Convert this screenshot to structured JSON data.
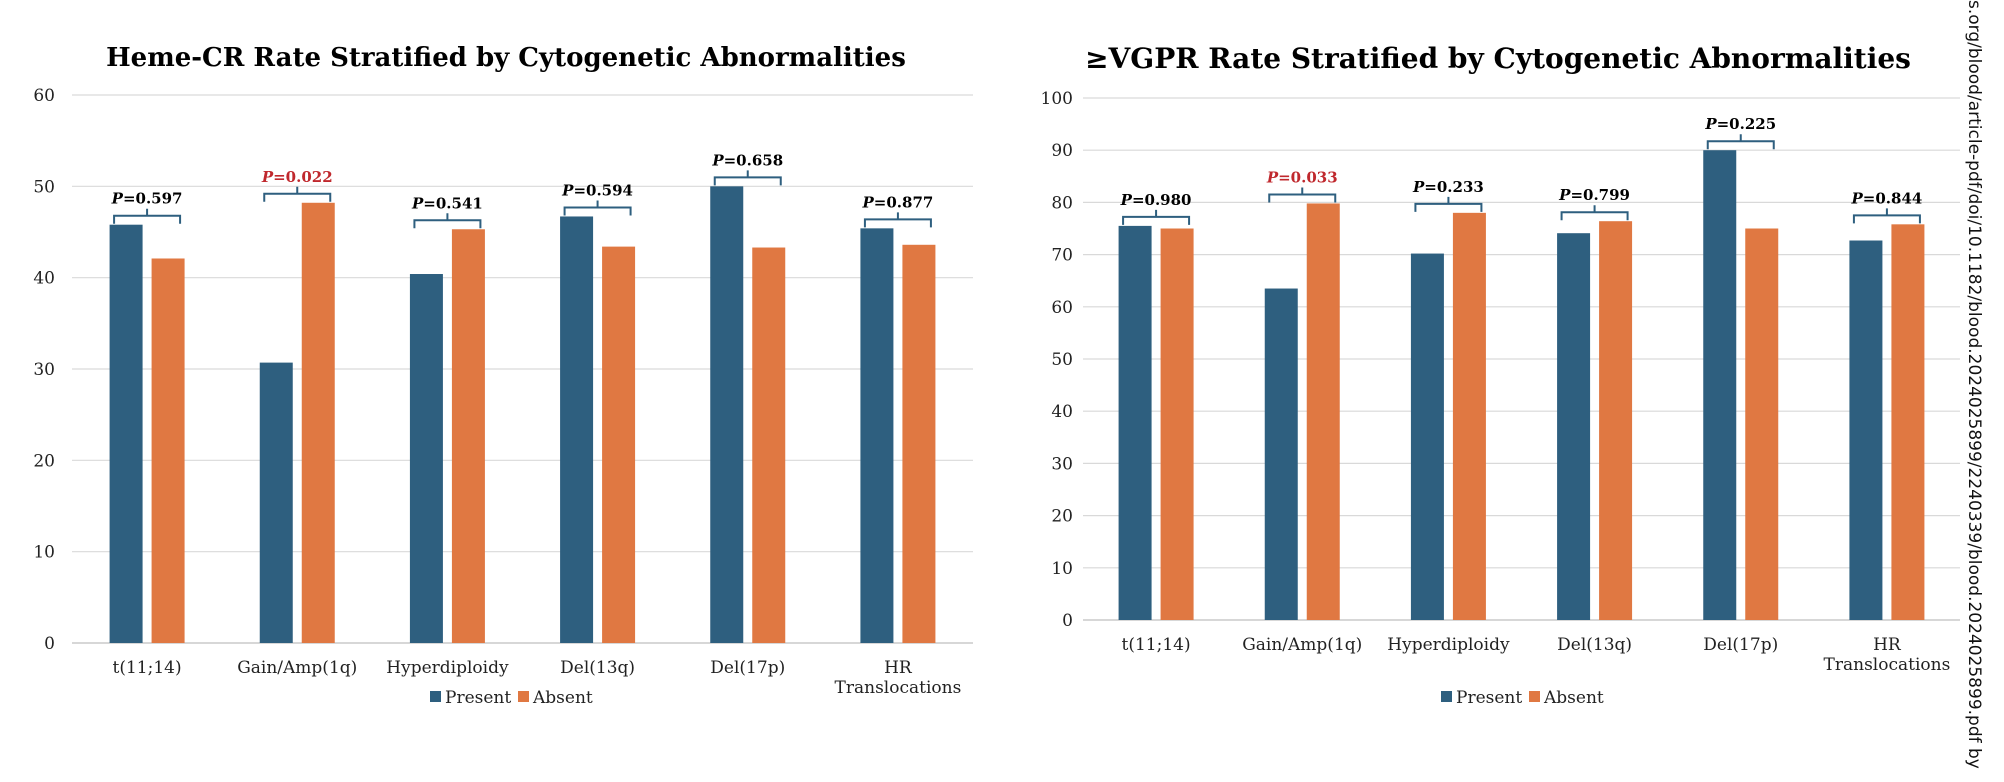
{
  "colors": {
    "present": "#2e5f7f",
    "absent": "#e07842",
    "grid": "#d9d9d9",
    "significant": "#c0282d",
    "bracket": "#2e5f7f"
  },
  "legend": {
    "present": "Present",
    "absent": "Absent"
  },
  "watermark": "s.org/blood/article-pdf/doi/10.1182/blood.2024025899/2240339/blood.2024025899.pdf by",
  "chart_data": [
    {
      "type": "bar",
      "title": "Heme-CR Rate Stratified by Cytogenetic Abnormalities",
      "categories": [
        "t(11;14)",
        "Gain/Amp(1q)",
        "Hyperdiploidy",
        "Del(13q)",
        "Del(17p)",
        "HR Translocations"
      ],
      "series": [
        {
          "name": "Present",
          "values": [
            45.8,
            30.7,
            40.4,
            46.7,
            50.0,
            45.4
          ]
        },
        {
          "name": "Absent",
          "values": [
            42.1,
            48.2,
            45.3,
            43.4,
            43.3,
            43.6
          ]
        }
      ],
      "p_values": [
        "P=0.597",
        "P=0.022",
        "P=0.541",
        "P=0.594",
        "P=0.658",
        "P=0.877"
      ],
      "significant": [
        false,
        true,
        false,
        false,
        false,
        false
      ],
      "yticks": [
        "0",
        "10",
        "20",
        "30",
        "40",
        "50",
        "60"
      ],
      "ylim": [
        0,
        60
      ],
      "grid": true,
      "legend_position": "bottom"
    },
    {
      "type": "bar",
      "title": "≥VGPR Rate Stratified by Cytogenetic Abnormalities",
      "categories": [
        "t(11;14)",
        "Gain/Amp(1q)",
        "Hyperdiploidy",
        "Del(13q)",
        "Del(17p)",
        "HR Translocations"
      ],
      "series": [
        {
          "name": "Present",
          "values": [
            75.5,
            63.5,
            70.2,
            74.1,
            90.0,
            72.7
          ]
        },
        {
          "name": "Absent",
          "values": [
            75.0,
            79.8,
            78.0,
            76.4,
            75.0,
            75.8
          ]
        }
      ],
      "p_values": [
        "P=0.980",
        "P=0.033",
        "P=0.233",
        "P=0.799",
        "P=0.225",
        "P=0.844"
      ],
      "significant": [
        false,
        true,
        false,
        false,
        false,
        false
      ],
      "yticks": [
        "0",
        "10",
        "20",
        "30",
        "40",
        "50",
        "60",
        "70",
        "80",
        "90",
        "100"
      ],
      "ylim": [
        0,
        100
      ],
      "grid": true,
      "legend_position": "bottom"
    }
  ]
}
